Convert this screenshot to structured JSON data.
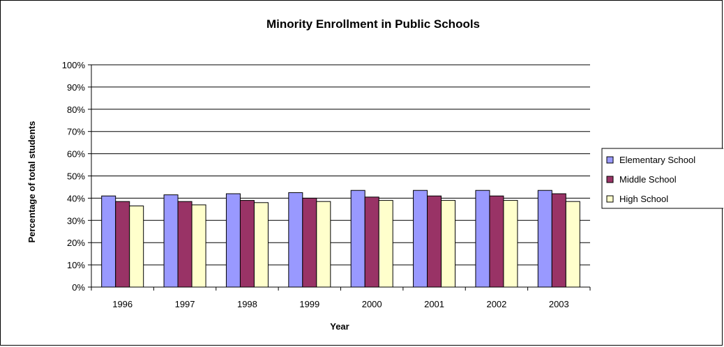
{
  "chart_data": {
    "type": "bar",
    "title": "Minority Enrollment in Public Schools",
    "xlabel": "Year",
    "ylabel": "Percentage of total students",
    "categories": [
      "1996",
      "1997",
      "1998",
      "1999",
      "2000",
      "2001",
      "2002",
      "2003"
    ],
    "series": [
      {
        "name": "Elementary School",
        "color": "#9999FF",
        "values": [
          41,
          41.5,
          42,
          42.5,
          43.5,
          43.5,
          43.5,
          43.5
        ]
      },
      {
        "name": "Middle School",
        "color": "#993366",
        "values": [
          38.5,
          38.5,
          39,
          40,
          40.5,
          41,
          41,
          42
        ]
      },
      {
        "name": "High School",
        "color": "#FFFFCC",
        "values": [
          36.5,
          37,
          38,
          38.5,
          39,
          39,
          39,
          38.5
        ]
      }
    ],
    "ylim": [
      0,
      100
    ],
    "yticks": [
      "0%",
      "10%",
      "20%",
      "30%",
      "40%",
      "50%",
      "60%",
      "70%",
      "80%",
      "90%",
      "100%"
    ],
    "grid": true,
    "legend_position": "right"
  }
}
